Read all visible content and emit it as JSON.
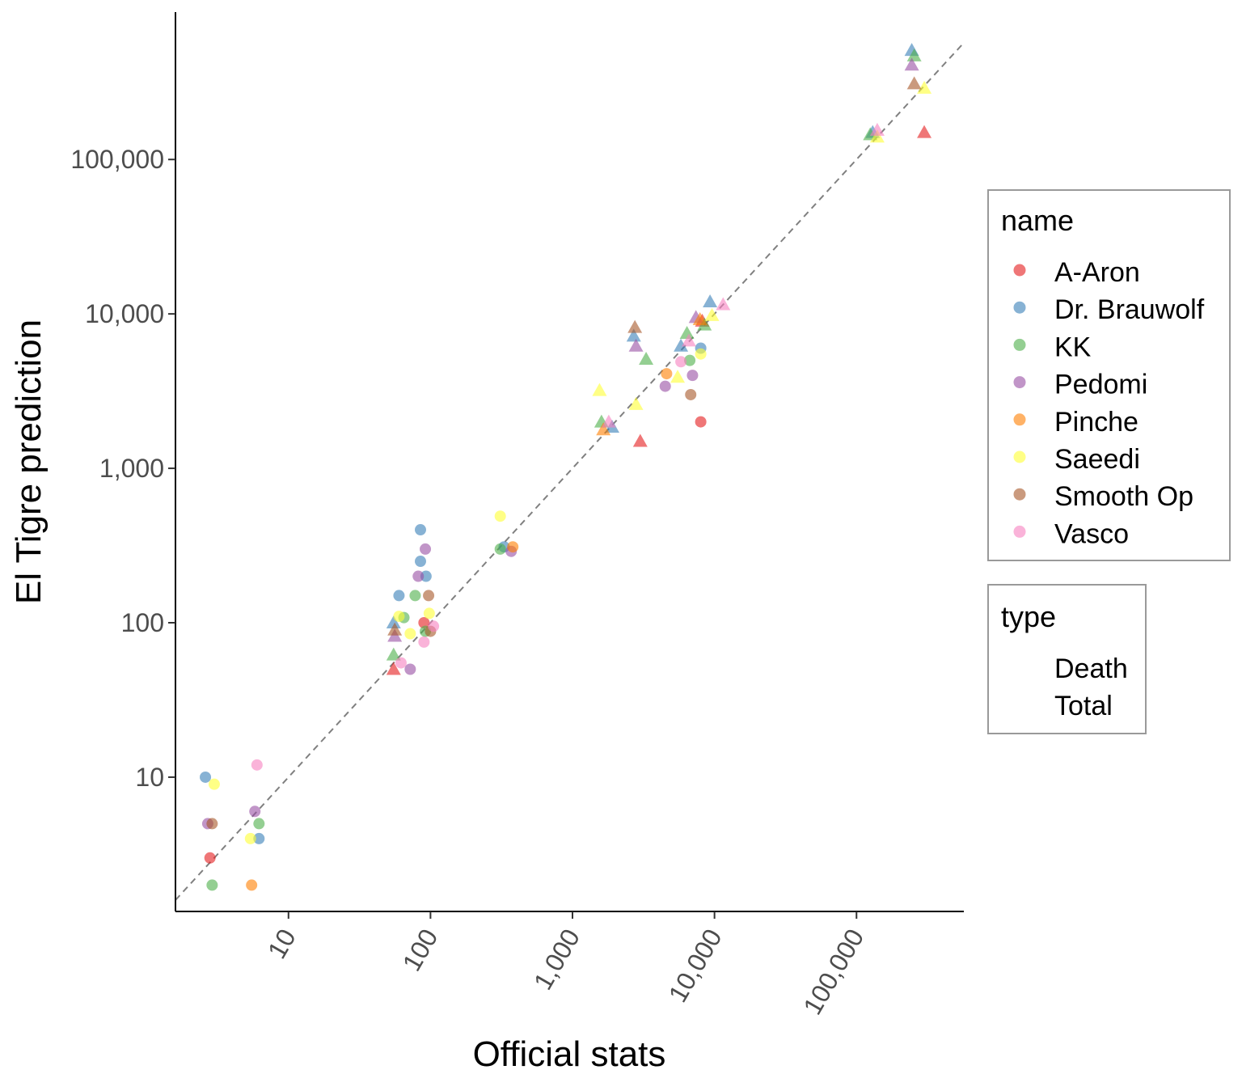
{
  "chart_data": {
    "type": "scatter",
    "title": "",
    "xlabel": "Official stats",
    "ylabel": "El Tigre prediction",
    "x_scale": "log10",
    "y_scale": "log10",
    "xlim": [
      1.6,
      570000
    ],
    "ylim": [
      1.35,
      900000
    ],
    "x_ticks": [
      10,
      100,
      1000,
      10000,
      100000
    ],
    "x_tick_labels": [
      "10",
      "100",
      "1,000",
      "10,000",
      "100,000"
    ],
    "y_ticks": [
      10,
      100,
      1000,
      10000,
      100000
    ],
    "y_tick_labels": [
      "10",
      "100",
      "1,000",
      "10,000",
      "100,000"
    ],
    "reference_line": "y = x (dashed grey)",
    "grid": false,
    "legend_position": "right",
    "legends": [
      {
        "title": "name",
        "entries": [
          "A-Aron",
          "Dr. Brauwolf",
          "KK",
          "Pedomi",
          "Pinche",
          "Saeedi",
          "Smooth Op",
          "Vasco"
        ]
      },
      {
        "title": "type",
        "entries": [
          "Death",
          "Total"
        ]
      }
    ],
    "colors": {
      "A-Aron": "#e41a1c",
      "Dr. Brauwolf": "#377eb8",
      "KK": "#4daf4a",
      "Pedomi": "#984ea3",
      "Pinche": "#ff7f00",
      "Saeedi": "#ffff33",
      "Smooth Op": "#a65628",
      "Vasco": "#f781bf"
    },
    "marker_by_type": {
      "Death": "circle",
      "Total": "triangle"
    },
    "series": [
      {
        "name": "A-Aron",
        "points": [
          {
            "type": "Death",
            "x": 2.8,
            "y": 3
          },
          {
            "type": "Death",
            "x": 90,
            "y": 100
          },
          {
            "type": "Death",
            "x": 8000,
            "y": 2000
          },
          {
            "type": "Total",
            "x": 55,
            "y": 50
          },
          {
            "type": "Total",
            "x": 3000,
            "y": 1500
          },
          {
            "type": "Total",
            "x": 300000,
            "y": 150000
          },
          {
            "type": "Total",
            "x": 8200,
            "y": 9000
          }
        ]
      },
      {
        "name": "Dr. Brauwolf",
        "points": [
          {
            "type": "Death",
            "x": 2.6,
            "y": 10
          },
          {
            "type": "Death",
            "x": 6.2,
            "y": 4
          },
          {
            "type": "Death",
            "x": 60,
            "y": 150
          },
          {
            "type": "Death",
            "x": 85,
            "y": 400
          },
          {
            "type": "Death",
            "x": 85,
            "y": 250
          },
          {
            "type": "Death",
            "x": 93,
            "y": 200
          },
          {
            "type": "Death",
            "x": 330,
            "y": 310
          },
          {
            "type": "Death",
            "x": 8000,
            "y": 6000
          },
          {
            "type": "Total",
            "x": 55,
            "y": 100
          },
          {
            "type": "Total",
            "x": 1900,
            "y": 1850
          },
          {
            "type": "Total",
            "x": 2700,
            "y": 7200
          },
          {
            "type": "Total",
            "x": 5800,
            "y": 6200
          },
          {
            "type": "Total",
            "x": 9300,
            "y": 12000
          },
          {
            "type": "Total",
            "x": 130000,
            "y": 150000
          },
          {
            "type": "Total",
            "x": 245000,
            "y": 510000
          }
        ]
      },
      {
        "name": "KK",
        "points": [
          {
            "type": "Death",
            "x": 2.9,
            "y": 2
          },
          {
            "type": "Death",
            "x": 6.2,
            "y": 5
          },
          {
            "type": "Death",
            "x": 65,
            "y": 108
          },
          {
            "type": "Death",
            "x": 78,
            "y": 150
          },
          {
            "type": "Death",
            "x": 92,
            "y": 88
          },
          {
            "type": "Death",
            "x": 310,
            "y": 300
          },
          {
            "type": "Death",
            "x": 6700,
            "y": 5000
          },
          {
            "type": "Total",
            "x": 55,
            "y": 62
          },
          {
            "type": "Total",
            "x": 1600,
            "y": 2000
          },
          {
            "type": "Total",
            "x": 3300,
            "y": 5100
          },
          {
            "type": "Total",
            "x": 6400,
            "y": 7500
          },
          {
            "type": "Total",
            "x": 8500,
            "y": 8500
          },
          {
            "type": "Total",
            "x": 125000,
            "y": 145000
          },
          {
            "type": "Total",
            "x": 255000,
            "y": 470000
          }
        ]
      },
      {
        "name": "Pedomi",
        "points": [
          {
            "type": "Death",
            "x": 2.7,
            "y": 5
          },
          {
            "type": "Death",
            "x": 5.8,
            "y": 6
          },
          {
            "type": "Death",
            "x": 72,
            "y": 50
          },
          {
            "type": "Death",
            "x": 82,
            "y": 200
          },
          {
            "type": "Death",
            "x": 92,
            "y": 300
          },
          {
            "type": "Death",
            "x": 370,
            "y": 290
          },
          {
            "type": "Death",
            "x": 4500,
            "y": 3400
          },
          {
            "type": "Death",
            "x": 7000,
            "y": 4000
          },
          {
            "type": "Total",
            "x": 56,
            "y": 82
          },
          {
            "type": "Total",
            "x": 2800,
            "y": 6200
          },
          {
            "type": "Total",
            "x": 7400,
            "y": 9500
          },
          {
            "type": "Total",
            "x": 245000,
            "y": 410000
          }
        ]
      },
      {
        "name": "Pinche",
        "points": [
          {
            "type": "Death",
            "x": 5.5,
            "y": 2
          },
          {
            "type": "Death",
            "x": 380,
            "y": 310
          },
          {
            "type": "Death",
            "x": 4600,
            "y": 4100
          },
          {
            "type": "Total",
            "x": 1650,
            "y": 1780
          },
          {
            "type": "Total",
            "x": 7900,
            "y": 9200
          }
        ]
      },
      {
        "name": "Saeedi",
        "points": [
          {
            "type": "Death",
            "x": 3.0,
            "y": 9
          },
          {
            "type": "Death",
            "x": 5.4,
            "y": 4
          },
          {
            "type": "Death",
            "x": 60,
            "y": 110
          },
          {
            "type": "Death",
            "x": 72,
            "y": 85
          },
          {
            "type": "Death",
            "x": 98,
            "y": 115
          },
          {
            "type": "Death",
            "x": 310,
            "y": 490
          },
          {
            "type": "Death",
            "x": 8000,
            "y": 5500
          },
          {
            "type": "Total",
            "x": 1550,
            "y": 3200
          },
          {
            "type": "Total",
            "x": 2800,
            "y": 2600
          },
          {
            "type": "Total",
            "x": 5500,
            "y": 3900
          },
          {
            "type": "Total",
            "x": 9600,
            "y": 9800
          },
          {
            "type": "Total",
            "x": 140000,
            "y": 140000
          },
          {
            "type": "Total",
            "x": 300000,
            "y": 290000
          }
        ]
      },
      {
        "name": "Smooth Op",
        "points": [
          {
            "type": "Death",
            "x": 2.9,
            "y": 5
          },
          {
            "type": "Death",
            "x": 97,
            "y": 150
          },
          {
            "type": "Death",
            "x": 100,
            "y": 88
          },
          {
            "type": "Death",
            "x": 6800,
            "y": 3000
          },
          {
            "type": "Total",
            "x": 56,
            "y": 90
          },
          {
            "type": "Total",
            "x": 2750,
            "y": 8200
          },
          {
            "type": "Total",
            "x": 255000,
            "y": 310000
          }
        ]
      },
      {
        "name": "Vasco",
        "points": [
          {
            "type": "Death",
            "x": 6.0,
            "y": 12
          },
          {
            "type": "Death",
            "x": 62,
            "y": 55
          },
          {
            "type": "Death",
            "x": 90,
            "y": 75
          },
          {
            "type": "Death",
            "x": 105,
            "y": 95
          },
          {
            "type": "Death",
            "x": 5800,
            "y": 4900
          },
          {
            "type": "Total",
            "x": 1800,
            "y": 2000
          },
          {
            "type": "Total",
            "x": 6600,
            "y": 6700
          },
          {
            "type": "Total",
            "x": 11500,
            "y": 11500
          },
          {
            "type": "Total",
            "x": 140000,
            "y": 155000
          }
        ]
      }
    ]
  }
}
